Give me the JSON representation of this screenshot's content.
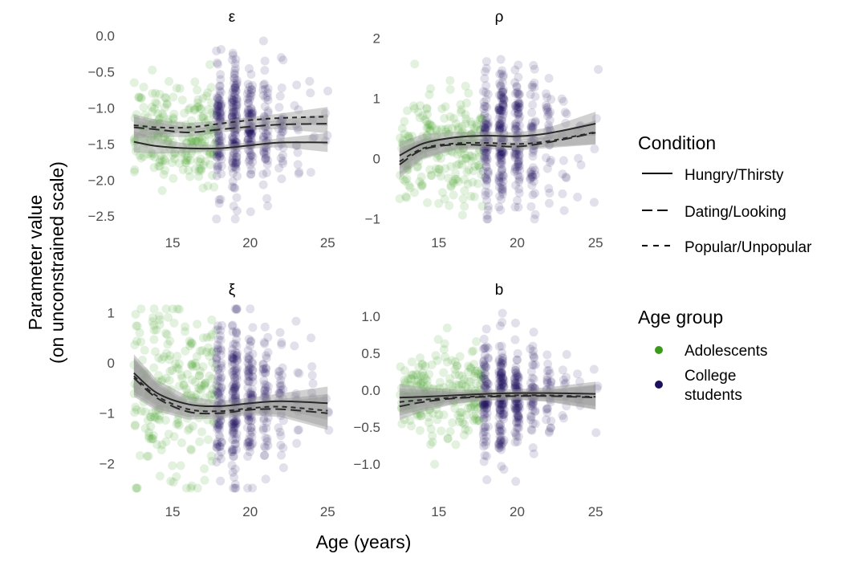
{
  "figure": {
    "xlabel": "Age (years)",
    "ylabel_line1": "Parameter value",
    "ylabel_line2": "(on unconstrained scale)"
  },
  "legend": {
    "condition_title": "Condition",
    "condition_items": [
      {
        "label": "Hungry/Thirsty",
        "style": "solid"
      },
      {
        "label": "Dating/Looking",
        "style": "longdash"
      },
      {
        "label": "Popular/Unpopular",
        "style": "dashed"
      }
    ],
    "age_title": "Age group",
    "age_items": [
      {
        "label_lines": [
          "Adolescents"
        ],
        "color": "#3a9a1a"
      },
      {
        "label_lines": [
          "College",
          "students"
        ],
        "color": "#1d0f5c"
      }
    ]
  },
  "colors": {
    "adolescents": "#3a9a1a",
    "college": "#1d0f5c",
    "ribbon": "#9a9a9a",
    "line": "#2a2a2a"
  },
  "chart_data": [
    {
      "type": "scatter",
      "title": "ε",
      "xlim": [
        12.3,
        25.4
      ],
      "ylim": [
        -2.62,
        0.05
      ],
      "xticks": [
        15,
        20,
        25
      ],
      "xtick_labels": [
        "15",
        "20",
        "25"
      ],
      "yticks": [
        0.0,
        -0.5,
        -1.0,
        -1.5,
        -2.0,
        -2.5
      ],
      "ytick_labels": [
        "0.0",
        "−0.5",
        "−1.0",
        "−1.5",
        "−2.0",
        "−2.5"
      ],
      "points": {
        "adol_mean": -1.35,
        "adol_sd": 0.33,
        "coll_mean": -1.3,
        "coll_sd": 0.4
      },
      "series": [
        {
          "name": "Hungry/Thirsty",
          "style": "solid",
          "x": [
            12.5,
            14,
            16,
            18,
            20,
            22,
            25
          ],
          "y": [
            -1.47,
            -1.53,
            -1.56,
            -1.56,
            -1.52,
            -1.48,
            -1.48
          ],
          "band": 0.04
        },
        {
          "name": "Dating/Looking",
          "style": "longdash",
          "x": [
            12.5,
            14,
            16,
            18,
            20,
            22,
            25
          ],
          "y": [
            -1.27,
            -1.3,
            -1.34,
            -1.3,
            -1.26,
            -1.23,
            -1.22
          ],
          "band": 0.04
        },
        {
          "name": "Popular/Unpopular",
          "style": "dashed",
          "x": [
            12.5,
            14,
            16,
            18,
            20,
            22,
            25
          ],
          "y": [
            -1.24,
            -1.27,
            -1.27,
            -1.22,
            -1.17,
            -1.14,
            -1.12
          ],
          "band": 0.04
        }
      ]
    },
    {
      "type": "scatter",
      "title": "ρ",
      "xlim": [
        12.3,
        25.4
      ],
      "ylim": [
        -1.1,
        2.1
      ],
      "xticks": [
        15,
        20,
        25
      ],
      "xtick_labels": [
        "15",
        "20",
        "25"
      ],
      "yticks": [
        2,
        1,
        0,
        -1
      ],
      "ytick_labels": [
        "2",
        "1",
        "0",
        "−1"
      ],
      "points": {
        "adol_mean": 0.15,
        "adol_sd": 0.45,
        "coll_mean": 0.3,
        "coll_sd": 0.55
      },
      "series": [
        {
          "name": "Hungry/Thirsty",
          "style": "solid",
          "x": [
            12.5,
            14,
            16,
            18,
            20,
            22,
            25
          ],
          "y": [
            0.05,
            0.25,
            0.35,
            0.38,
            0.37,
            0.42,
            0.58
          ],
          "band": 0.06
        },
        {
          "name": "Dating/Looking",
          "style": "longdash",
          "x": [
            12.5,
            14,
            16,
            18,
            20,
            22,
            25
          ],
          "y": [
            -0.1,
            0.15,
            0.23,
            0.22,
            0.2,
            0.27,
            0.43
          ],
          "band": 0.06
        },
        {
          "name": "Popular/Unpopular",
          "style": "dashed",
          "x": [
            12.5,
            14,
            16,
            18,
            20,
            22,
            25
          ],
          "y": [
            -0.05,
            0.17,
            0.25,
            0.26,
            0.24,
            0.29,
            0.44
          ],
          "band": 0.06
        }
      ]
    },
    {
      "type": "scatter",
      "title": "ξ",
      "xlim": [
        12.3,
        25.4
      ],
      "ylim": [
        -2.6,
        1.15
      ],
      "xticks": [
        15,
        20,
        25
      ],
      "xtick_labels": [
        "15",
        "20",
        "25"
      ],
      "yticks": [
        1,
        0,
        -1,
        -2
      ],
      "ytick_labels": [
        "1",
        "0",
        "−1",
        "−2"
      ],
      "points": {
        "adol_mean": -0.55,
        "adol_sd": 0.85,
        "coll_mean": -0.75,
        "coll_sd": 0.75
      },
      "series": [
        {
          "name": "Hungry/Thirsty",
          "style": "solid",
          "x": [
            12.5,
            14,
            16,
            18,
            20,
            22,
            25
          ],
          "y": [
            -0.2,
            -0.6,
            -0.82,
            -0.86,
            -0.8,
            -0.76,
            -0.8
          ],
          "band": 0.1
        },
        {
          "name": "Dating/Looking",
          "style": "longdash",
          "x": [
            12.5,
            14,
            16,
            18,
            20,
            22,
            25
          ],
          "y": [
            -0.3,
            -0.7,
            -0.97,
            -1.0,
            -0.93,
            -0.92,
            -1.0
          ],
          "band": 0.1
        },
        {
          "name": "Popular/Unpopular",
          "style": "dashed",
          "x": [
            12.5,
            14,
            16,
            18,
            20,
            22,
            25
          ],
          "y": [
            -0.26,
            -0.66,
            -0.92,
            -0.96,
            -0.9,
            -0.87,
            -0.95
          ],
          "band": 0.1
        }
      ]
    },
    {
      "type": "scatter",
      "title": "b",
      "xlim": [
        12.3,
        25.4
      ],
      "ylim": [
        -1.4,
        1.15
      ],
      "xticks": [
        15,
        20,
        25
      ],
      "xtick_labels": [
        "15",
        "20",
        "25"
      ],
      "yticks": [
        1.0,
        0.5,
        0.0,
        -0.5,
        -1.0
      ],
      "ytick_labels": [
        "1.0",
        "0.5",
        "0.0",
        "−0.5",
        "−1.0"
      ],
      "points": {
        "adol_mean": -0.1,
        "adol_sd": 0.3,
        "coll_mean": -0.05,
        "coll_sd": 0.35
      },
      "series": [
        {
          "name": "Hungry/Thirsty",
          "style": "solid",
          "x": [
            12.5,
            14,
            16,
            18,
            20,
            22,
            25
          ],
          "y": [
            -0.1,
            -0.09,
            -0.07,
            -0.05,
            -0.04,
            -0.04,
            -0.05
          ],
          "band": 0.05
        },
        {
          "name": "Dating/Looking",
          "style": "longdash",
          "x": [
            12.5,
            14,
            16,
            18,
            20,
            22,
            25
          ],
          "y": [
            -0.22,
            -0.16,
            -0.11,
            -0.09,
            -0.08,
            -0.08,
            -0.1
          ],
          "band": 0.05
        },
        {
          "name": "Popular/Unpopular",
          "style": "dashed",
          "x": [
            12.5,
            14,
            16,
            18,
            20,
            22,
            25
          ],
          "y": [
            -0.16,
            -0.13,
            -0.1,
            -0.08,
            -0.07,
            -0.07,
            -0.09
          ],
          "band": 0.05
        }
      ]
    }
  ]
}
